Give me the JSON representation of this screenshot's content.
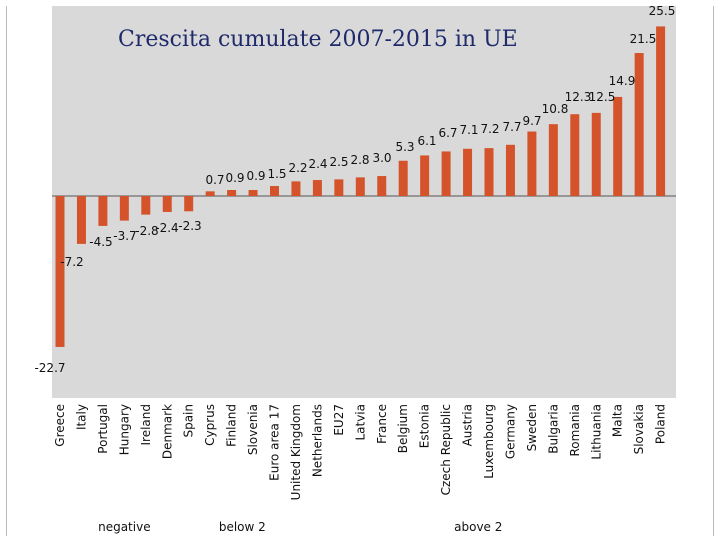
{
  "chart_data": {
    "type": "bar",
    "title": "Crescita cumulate 2007-2015 in UE",
    "xlabel": "",
    "ylabel": "",
    "ylim": [
      -22.7,
      25.5
    ],
    "categories": [
      "Greece",
      "Italy",
      "Portugal",
      "Hungary",
      "Ireland",
      "Denmark",
      "Spain",
      "Cyprus",
      "Finland",
      "Slovenia",
      "Euro area 17",
      "United Kingdom",
      "Netherlands",
      "EU27",
      "Latvia",
      "France",
      "Belgium",
      "Estonia",
      "Czech Republic",
      "Austria",
      "Luxembourg",
      "Germany",
      "Sweden",
      "Bulgaria",
      "Romania",
      "Lithuania",
      "Malta",
      "Slovakia",
      "Poland"
    ],
    "values": [
      -22.7,
      -7.2,
      -4.5,
      -3.7,
      -2.8,
      -2.4,
      -2.3,
      0.7,
      0.9,
      0.9,
      1.5,
      2.2,
      2.4,
      2.5,
      2.8,
      3.0,
      5.3,
      6.1,
      6.7,
      7.1,
      7.2,
      7.7,
      9.7,
      10.8,
      12.3,
      12.5,
      14.9,
      21.5,
      25.5
    ],
    "value_labels": [
      "-22.7",
      "-7.2",
      "-4.5",
      "-3.7",
      "-2.8",
      "-2.4",
      "-2.3",
      "0.7",
      "0.9",
      "0.9",
      "1.5",
      "2.2",
      "2.4",
      "2.5",
      "2.8",
      "3.0",
      "5.3",
      "6.1",
      "6.7",
      "7.1",
      "7.2",
      "7.7",
      "9.7",
      "10.8",
      "12.3",
      "12.5",
      "14.9",
      "21.5",
      "25.5"
    ],
    "groups": [
      {
        "label": "negative",
        "from": 0,
        "to": 6
      },
      {
        "label": "below 2",
        "from": 7,
        "to": 10
      },
      {
        "label": "above 2",
        "from": 11,
        "to": 28
      }
    ],
    "colors": {
      "bar": "#d4532a",
      "plot_bg": "#d9d9d9",
      "title": "#1f2a6b",
      "text": "#111111"
    },
    "grid": false
  }
}
